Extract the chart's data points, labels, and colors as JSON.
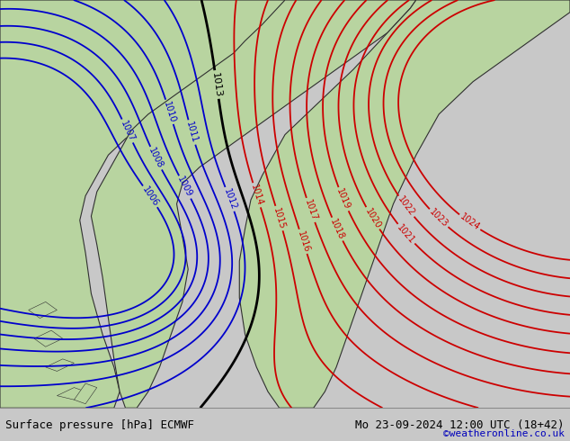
{
  "title_left": "Surface pressure [hPa] ECMWF",
  "title_right": "Mo 23-09-2024 12:00 UTC (18+42)",
  "credit": "©weatheronline.co.uk",
  "bg_color": "#c8c8c8",
  "land_color": "#b8d4a0",
  "sea_color": "#c8c8c8",
  "border_color": "#303030",
  "bottom_bar_color": "#e0e0e0",
  "text_color_left": "#000000",
  "text_color_right": "#000000",
  "credit_color": "#0000bb",
  "contour_color_low": "#0000cc",
  "contour_color_mid": "#000000",
  "contour_color_high": "#cc0000",
  "figsize": [
    6.34,
    4.9
  ],
  "dpi": 100,
  "bottom_bar_height": 0.075
}
